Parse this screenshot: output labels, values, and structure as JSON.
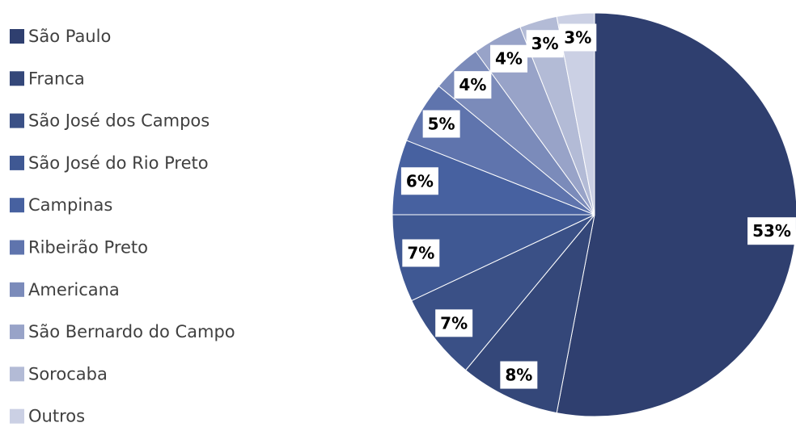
{
  "chart_data": {
    "type": "pie",
    "categories": [
      "São Paulo",
      "Franca",
      "São José dos Campos",
      "São José do Rio Preto",
      "Campinas",
      "Ribeirão Preto",
      "Americana",
      "São Bernardo do Campo",
      "Sorocaba",
      "Outros"
    ],
    "values": [
      53,
      8,
      7,
      7,
      6,
      5,
      4,
      4,
      3,
      3
    ],
    "value_labels": [
      "53%",
      "8%",
      "7%",
      "7%",
      "6%",
      "5%",
      "4%",
      "4%",
      "3%",
      "3%"
    ],
    "colors": [
      "#2f3f6f",
      "#344779",
      "#3a5086",
      "#3f5893",
      "#4761a0",
      "#5f74ad",
      "#7b8bba",
      "#98a3c8",
      "#b3bbd6",
      "#cbd0e4"
    ],
    "legend": "left"
  }
}
